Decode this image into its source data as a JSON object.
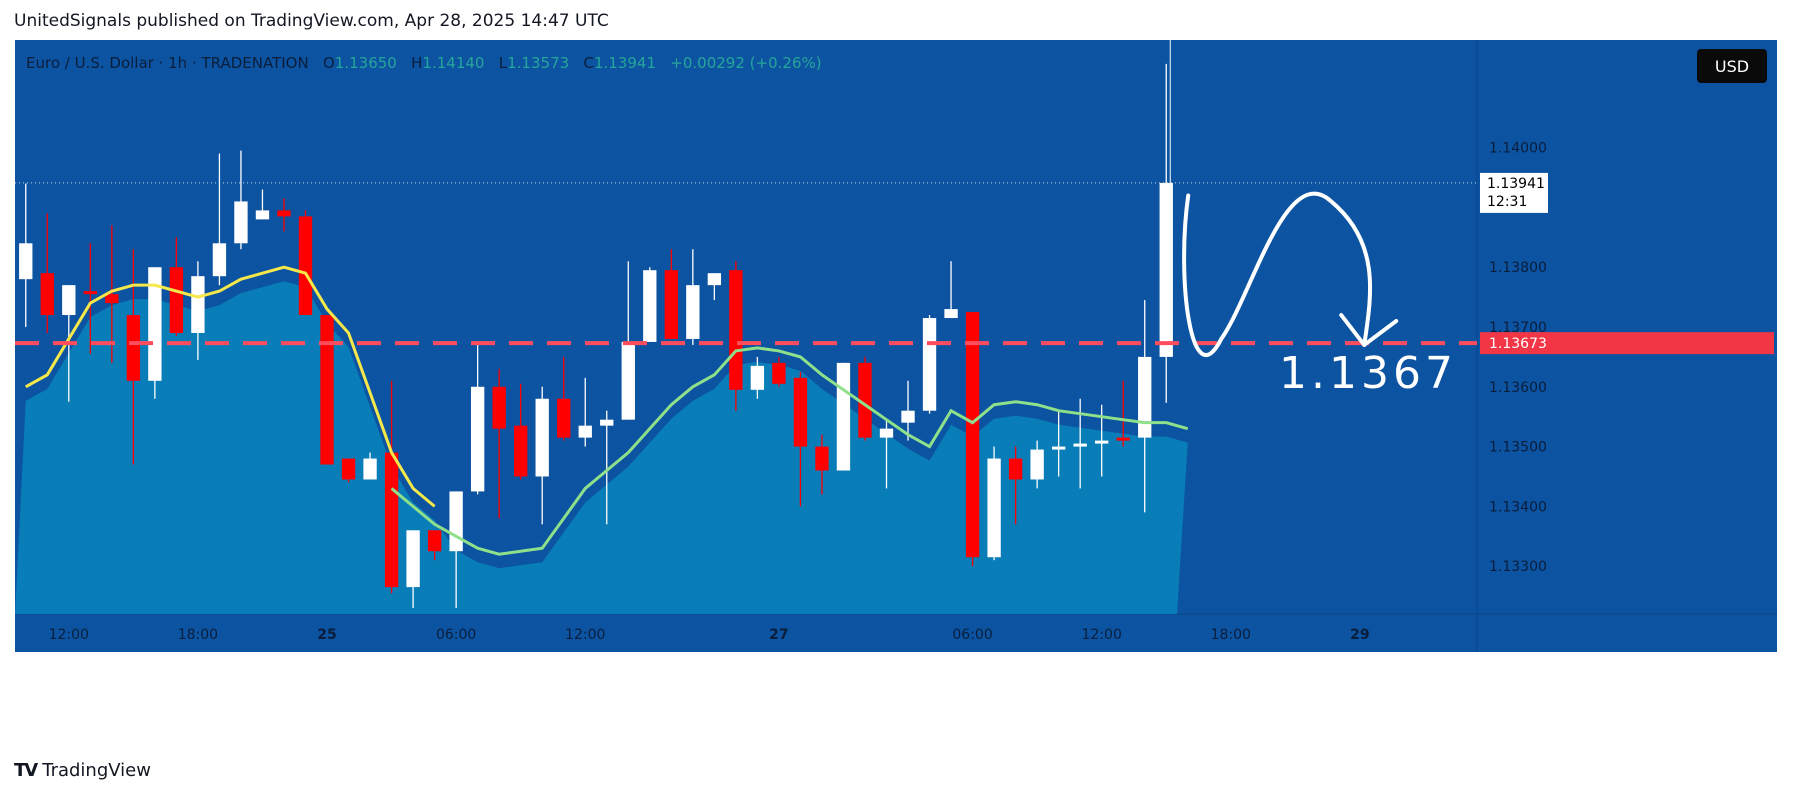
{
  "header": {
    "published_line": "UnitedSignals published on TradingView.com, Apr 28, 2025 14:47 UTC"
  },
  "legend": {
    "symbol": "Euro / U.S. Dollar · 1h · TRADENATION",
    "o_label": "O",
    "o_value": "1.13650",
    "h_label": "H",
    "h_value": "1.14140",
    "l_label": "L",
    "l_value": "1.13573",
    "c_label": "C",
    "c_value": "1.13941",
    "change": "+0.00292 (+0.26%)"
  },
  "currency_button": "USD",
  "footer": {
    "brand": "TradingView"
  },
  "colors": {
    "background": "#0c53a1",
    "area_fill": "#0a7fb8",
    "up_candle": "#ffffff",
    "down_candle": "#ff0000",
    "ma_yellow": "#f5e84a",
    "ma_green": "#8fe08a",
    "level_line": "#ff4d5e",
    "axis_bg": "#0c53a1",
    "axis_text": "#0a1e3c"
  },
  "chart_data": {
    "type": "candlestick",
    "instrument": "Euro / U.S. Dollar",
    "timeframe": "1h",
    "ylim": [
      1.1322,
      1.1418
    ],
    "y_ticks": [
      "1.13300",
      "1.13400",
      "1.13500",
      "1.13600",
      "1.13700",
      "1.13800",
      "1.13900",
      "1.14000"
    ],
    "x_ticks": [
      {
        "label": "12:00",
        "index": 2
      },
      {
        "label": "18:00",
        "index": 8
      },
      {
        "label": "25",
        "index": 14
      },
      {
        "label": "06:00",
        "index": 20
      },
      {
        "label": "12:00",
        "index": 26
      },
      {
        "label": "27",
        "index": 35
      },
      {
        "label": "06:00",
        "index": 44
      },
      {
        "label": "12:00",
        "index": 50
      },
      {
        "label": "18:00",
        "index": 56
      },
      {
        "label": "29",
        "index": 62
      }
    ],
    "total_slots": 66,
    "candles": [
      {
        "o": 1.1378,
        "h": 1.1394,
        "l": 1.137,
        "c": 1.1384
      },
      {
        "o": 1.1379,
        "h": 1.1389,
        "l": 1.1369,
        "c": 1.1372
      },
      {
        "o": 1.1372,
        "h": 1.1377,
        "l": 1.13575,
        "c": 1.1377
      },
      {
        "o": 1.1376,
        "h": 1.1384,
        "l": 1.13655,
        "c": 1.13755
      },
      {
        "o": 1.13755,
        "h": 1.1387,
        "l": 1.1364,
        "c": 1.1374
      },
      {
        "o": 1.1372,
        "h": 1.1383,
        "l": 1.1347,
        "c": 1.1361
      },
      {
        "o": 1.1361,
        "h": 1.138,
        "l": 1.1358,
        "c": 1.138
      },
      {
        "o": 1.138,
        "h": 1.1385,
        "l": 1.13685,
        "c": 1.1369
      },
      {
        "o": 1.1369,
        "h": 1.1381,
        "l": 1.13645,
        "c": 1.13785
      },
      {
        "o": 1.13785,
        "h": 1.1399,
        "l": 1.1377,
        "c": 1.1384
      },
      {
        "o": 1.1384,
        "h": 1.13995,
        "l": 1.1383,
        "c": 1.1391
      },
      {
        "o": 1.1388,
        "h": 1.1393,
        "l": 1.1388,
        "c": 1.13895
      },
      {
        "o": 1.13895,
        "h": 1.13915,
        "l": 1.1386,
        "c": 1.13885
      },
      {
        "o": 1.13885,
        "h": 1.13895,
        "l": 1.1372,
        "c": 1.1372
      },
      {
        "o": 1.1372,
        "h": 1.1372,
        "l": 1.1347,
        "c": 1.1347
      },
      {
        "o": 1.1348,
        "h": 1.1348,
        "l": 1.1344,
        "c": 1.13445
      },
      {
        "o": 1.13445,
        "h": 1.1349,
        "l": 1.13445,
        "c": 1.1348
      },
      {
        "o": 1.1349,
        "h": 1.1361,
        "l": 1.13255,
        "c": 1.13265
      },
      {
        "o": 1.13265,
        "h": 1.1336,
        "l": 1.1323,
        "c": 1.1336
      },
      {
        "o": 1.1336,
        "h": 1.1336,
        "l": 1.1331,
        "c": 1.13325
      },
      {
        "o": 1.13325,
        "h": 1.13425,
        "l": 1.1323,
        "c": 1.13425
      },
      {
        "o": 1.13425,
        "h": 1.13675,
        "l": 1.1342,
        "c": 1.136
      },
      {
        "o": 1.136,
        "h": 1.1363,
        "l": 1.1338,
        "c": 1.1353
      },
      {
        "o": 1.13535,
        "h": 1.13605,
        "l": 1.13445,
        "c": 1.1345
      },
      {
        "o": 1.1345,
        "h": 1.136,
        "l": 1.1337,
        "c": 1.1358
      },
      {
        "o": 1.1358,
        "h": 1.1365,
        "l": 1.1351,
        "c": 1.13515
      },
      {
        "o": 1.13515,
        "h": 1.13615,
        "l": 1.135,
        "c": 1.13535
      },
      {
        "o": 1.13535,
        "h": 1.1356,
        "l": 1.1337,
        "c": 1.13545
      },
      {
        "o": 1.13545,
        "h": 1.1381,
        "l": 1.13545,
        "c": 1.13675
      },
      {
        "o": 1.13675,
        "h": 1.138,
        "l": 1.13675,
        "c": 1.13795
      },
      {
        "o": 1.13795,
        "h": 1.1383,
        "l": 1.1368,
        "c": 1.1368
      },
      {
        "o": 1.1368,
        "h": 1.1383,
        "l": 1.1367,
        "c": 1.1377
      },
      {
        "o": 1.1377,
        "h": 1.1379,
        "l": 1.13745,
        "c": 1.1379
      },
      {
        "o": 1.13795,
        "h": 1.1381,
        "l": 1.1356,
        "c": 1.13595
      },
      {
        "o": 1.13595,
        "h": 1.1365,
        "l": 1.1358,
        "c": 1.13635
      },
      {
        "o": 1.1364,
        "h": 1.1365,
        "l": 1.136,
        "c": 1.13605
      },
      {
        "o": 1.13615,
        "h": 1.13625,
        "l": 1.134,
        "c": 1.135
      },
      {
        "o": 1.135,
        "h": 1.1352,
        "l": 1.1342,
        "c": 1.1346
      },
      {
        "o": 1.1346,
        "h": 1.1364,
        "l": 1.1346,
        "c": 1.1364
      },
      {
        "o": 1.1364,
        "h": 1.1365,
        "l": 1.1351,
        "c": 1.13515
      },
      {
        "o": 1.13515,
        "h": 1.13545,
        "l": 1.1343,
        "c": 1.1353
      },
      {
        "o": 1.1354,
        "h": 1.1361,
        "l": 1.1351,
        "c": 1.1356
      },
      {
        "o": 1.1356,
        "h": 1.1372,
        "l": 1.13555,
        "c": 1.13715
      },
      {
        "o": 1.13715,
        "h": 1.1381,
        "l": 1.13715,
        "c": 1.1373
      },
      {
        "o": 1.13725,
        "h": 1.13725,
        "l": 1.133,
        "c": 1.13315
      },
      {
        "o": 1.13315,
        "h": 1.135,
        "l": 1.1331,
        "c": 1.1348
      },
      {
        "o": 1.1348,
        "h": 1.135,
        "l": 1.1337,
        "c": 1.13445
      },
      {
        "o": 1.13445,
        "h": 1.1351,
        "l": 1.1343,
        "c": 1.13495
      },
      {
        "o": 1.13495,
        "h": 1.1356,
        "l": 1.1345,
        "c": 1.135
      },
      {
        "o": 1.135,
        "h": 1.1358,
        "l": 1.1343,
        "c": 1.13505
      },
      {
        "o": 1.13505,
        "h": 1.1357,
        "l": 1.1345,
        "c": 1.1351
      },
      {
        "o": 1.13515,
        "h": 1.1361,
        "l": 1.135,
        "c": 1.1351
      },
      {
        "o": 1.13515,
        "h": 1.13745,
        "l": 1.1339,
        "c": 1.1365
      },
      {
        "o": 1.1365,
        "h": 1.1414,
        "l": 1.13573,
        "c": 1.13941
      }
    ],
    "ma_yellow": [
      1.136,
      1.1362,
      1.1368,
      1.1374,
      1.1376,
      1.1377,
      1.1377,
      1.1376,
      1.1375,
      1.1376,
      1.1378,
      1.1379,
      1.138,
      1.1379,
      1.1373,
      1.1369,
      1.1359,
      1.1349,
      1.1343,
      1.134
    ],
    "ma_green_offset": 17,
    "ma_green": [
      1.1343,
      1.134,
      1.1337,
      1.1335,
      1.1333,
      1.1332,
      1.13325,
      1.1333,
      1.1338,
      1.1343,
      1.1346,
      1.1349,
      1.1353,
      1.1357,
      1.136,
      1.1362,
      1.1366,
      1.13665,
      1.1366,
      1.1365,
      1.1362,
      1.13595,
      1.1357,
      1.13545,
      1.1352,
      1.135,
      1.1356,
      1.1354,
      1.1357,
      1.13575,
      1.1357,
      1.1356,
      1.13555,
      1.1355,
      1.13545,
      1.1354,
      1.1354,
      1.1353
    ],
    "level_line": 1.13673,
    "level_label": "1.13673",
    "last_price_label": "1.13941",
    "countdown_label": "12:31",
    "annotation_text": "1.1367"
  }
}
